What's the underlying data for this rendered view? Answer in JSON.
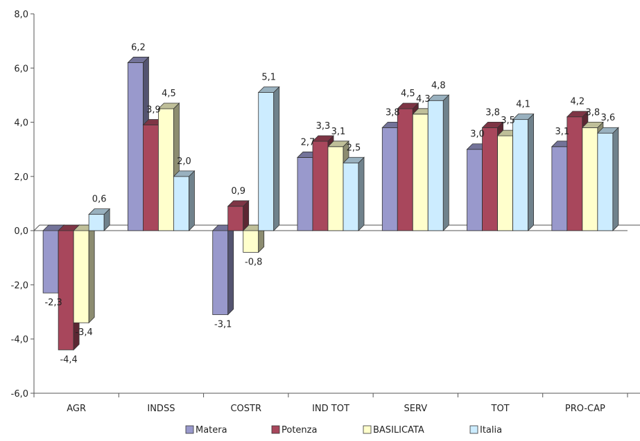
{
  "chart_data": {
    "type": "bar",
    "categories": [
      "AGR",
      "INDSS",
      "COSTR",
      "IND TOT",
      "SERV",
      "TOT",
      "PRO-CAP"
    ],
    "series": [
      {
        "name": "Matera",
        "color": "#9999cc",
        "values": [
          -2.3,
          6.2,
          -3.1,
          2.7,
          3.8,
          3.0,
          3.1
        ]
      },
      {
        "name": "Potenza",
        "color": "#a8475c",
        "values": [
          -4.4,
          3.9,
          0.9,
          3.3,
          4.5,
          3.8,
          4.2
        ]
      },
      {
        "name": "BASILICATA",
        "color": "#ffffcc",
        "values": [
          -3.4,
          4.5,
          -0.8,
          3.1,
          4.3,
          3.5,
          3.8
        ]
      },
      {
        "name": "Italia",
        "color": "#ccecff",
        "values": [
          0.6,
          2.0,
          5.1,
          2.5,
          4.8,
          4.1,
          3.6
        ]
      }
    ],
    "y_ticks": [
      "8,0",
      "6,0",
      "4,0",
      "2,0",
      "0,0",
      "-2,0",
      "-4,0",
      "-6,0"
    ],
    "ylim": [
      -6,
      8
    ],
    "grid": false,
    "legend_position": "bottom-center",
    "number_format": "comma-decimal"
  }
}
